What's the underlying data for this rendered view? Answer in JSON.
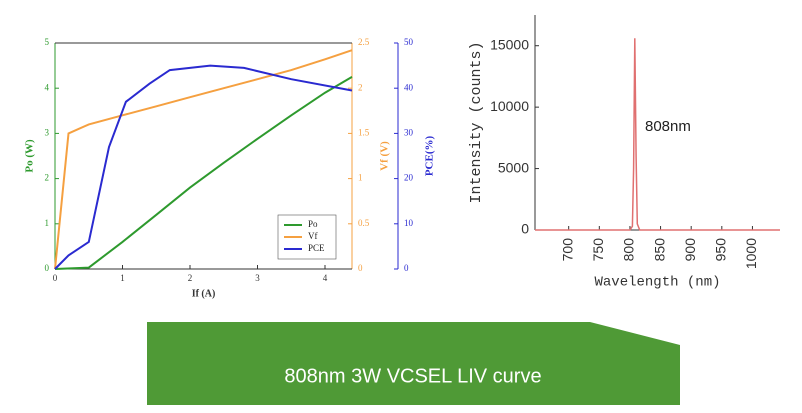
{
  "chart_data": [
    {
      "type": "line",
      "xlabel": "If (A)",
      "ylabel": "Po (W)",
      "y2label": "Vf (V)",
      "y3label": "PCE(%)",
      "xlim": [
        0,
        4.4
      ],
      "xticks": [
        0,
        1,
        2,
        3,
        4
      ],
      "ylim": [
        0,
        5
      ],
      "yticks": [
        0,
        1,
        2,
        3,
        4,
        5
      ],
      "y2lim": [
        0,
        2.5
      ],
      "y2ticks": [
        0,
        0.5,
        1,
        1.5,
        2,
        2.5
      ],
      "y3lim": [
        0,
        50
      ],
      "y3ticks": [
        0,
        10,
        20,
        30,
        40,
        50
      ],
      "legend": "lower right",
      "series": [
        {
          "name": "Po",
          "color": "#2e9a2e",
          "x": [
            0,
            0.5,
            1,
            1.5,
            2,
            2.5,
            3,
            3.5,
            4,
            4.4
          ],
          "values": [
            0,
            0.03,
            0.6,
            1.2,
            1.8,
            2.35,
            2.88,
            3.4,
            3.9,
            4.25
          ]
        },
        {
          "name": "Vf",
          "color": "#f5a040",
          "axis": "y2",
          "x": [
            0,
            0.2,
            0.5,
            1,
            1.5,
            2,
            2.5,
            3,
            3.5,
            4,
            4.4
          ],
          "values": [
            0,
            1.5,
            1.6,
            1.7,
            1.8,
            1.9,
            2.0,
            2.1,
            2.2,
            2.32,
            2.42
          ]
        },
        {
          "name": "PCE",
          "color": "#2a2ad0",
          "axis": "y3",
          "x": [
            0,
            0.2,
            0.5,
            0.8,
            1.05,
            1.4,
            1.7,
            2.3,
            2.8,
            3.5,
            4.4
          ],
          "values": [
            0,
            3,
            6,
            27,
            37,
            41,
            44,
            45,
            44.5,
            42,
            39.5
          ]
        }
      ]
    },
    {
      "type": "line",
      "xlabel": "Wavelength (nm)",
      "ylabel": "Intensity (counts)",
      "xlim": [
        645,
        1045
      ],
      "xticks": [
        700,
        750,
        800,
        850,
        900,
        950,
        1000
      ],
      "ylim": [
        0,
        17500
      ],
      "yticks": [
        0,
        5000,
        10000,
        15000
      ],
      "annotation": "808nm",
      "series": [
        {
          "color": "#e07070",
          "x": [
            645,
            800,
            804,
            806,
            808,
            810,
            812,
            816,
            1045
          ],
          "values": [
            0,
            0,
            300,
            5000,
            15600,
            6000,
            500,
            0,
            0
          ]
        }
      ]
    }
  ],
  "caption": "808nm 3W VCSEL LIV curve"
}
